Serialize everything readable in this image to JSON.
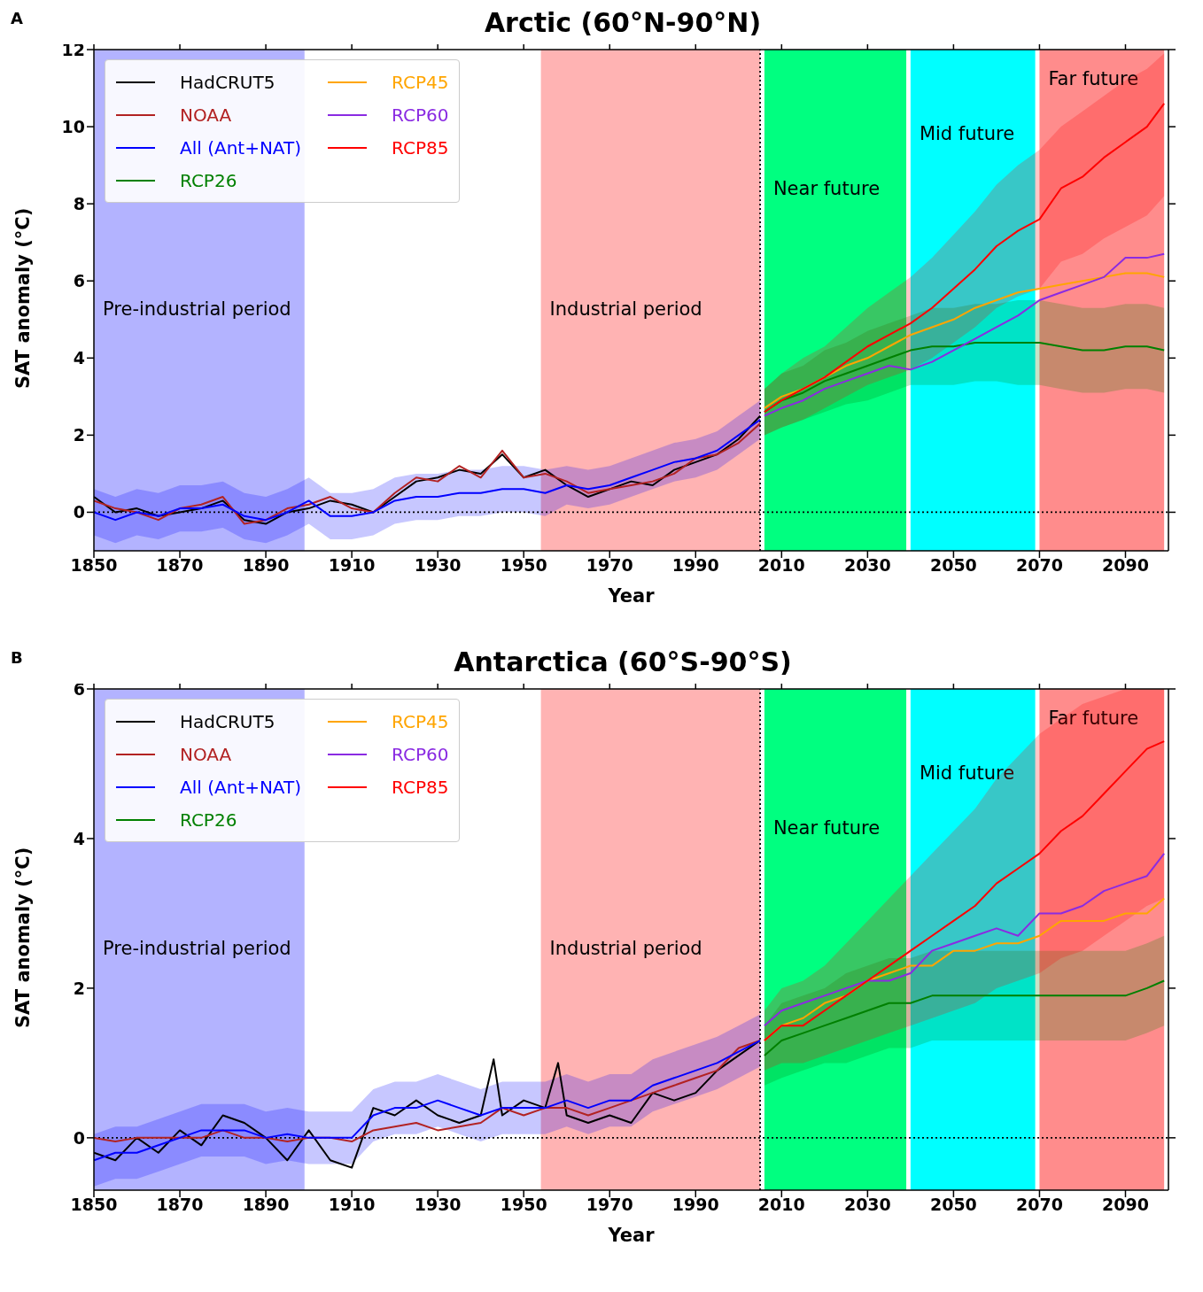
{
  "chart_data": [
    {
      "type": "line",
      "title": "Arctic (60°N-90°N)",
      "xlabel": "Year",
      "ylabel": "SAT anomaly (°C)",
      "annotations": [
        "A"
      ],
      "xlim": [
        1850,
        2100
      ],
      "xticks": [
        1850,
        1870,
        1890,
        1910,
        1930,
        1950,
        1970,
        1990,
        2010,
        2030,
        2050,
        2070,
        2090
      ],
      "ylim": [
        -1,
        12
      ],
      "yticks": [
        0,
        2,
        4,
        6,
        8,
        10,
        12
      ],
      "grid": false,
      "legend": "top left",
      "marker": "none",
      "line_style": "solid",
      "bands": [
        {
          "axis": "x",
          "from": 1850,
          "to": 1899,
          "label": "Pre-industrial period",
          "color": "#b3b3ff"
        },
        {
          "axis": "x",
          "from": 1954,
          "to": 2005,
          "label": "Industrial period",
          "color": "#ffb3b3"
        },
        {
          "axis": "x",
          "from": 2006,
          "to": 2039,
          "label": "Near future",
          "color": "#00ff80"
        },
        {
          "axis": "x",
          "from": 2040,
          "to": 2069,
          "label": "Mid future",
          "color": "#00ffff"
        },
        {
          "axis": "x",
          "from": 2070,
          "to": 2099,
          "label": "Far future",
          "color": "#ff8c8c"
        }
      ],
      "ref_lines": [
        {
          "axis": "y",
          "value": 0,
          "line_style": "dotted",
          "color": "#000000"
        },
        {
          "axis": "x",
          "value": 2005,
          "line_style": "dotted",
          "color": "#000000"
        }
      ],
      "series": [
        {
          "name": "HadCRUT5",
          "color": "#000000",
          "x": [
            1850,
            1855,
            1860,
            1865,
            1870,
            1875,
            1880,
            1885,
            1890,
            1895,
            1900,
            1905,
            1910,
            1915,
            1920,
            1925,
            1930,
            1935,
            1940,
            1945,
            1950,
            1955,
            1960,
            1965,
            1970,
            1975,
            1980,
            1985,
            1990,
            1995,
            2000,
            2005
          ],
          "values": [
            0.4,
            0.0,
            0.1,
            -0.1,
            0.0,
            0.1,
            0.3,
            -0.2,
            -0.3,
            0.0,
            0.1,
            0.3,
            0.2,
            0.0,
            0.4,
            0.8,
            0.9,
            1.1,
            1.0,
            1.5,
            0.9,
            1.1,
            0.7,
            0.4,
            0.6,
            0.8,
            0.7,
            1.1,
            1.3,
            1.5,
            1.9,
            2.5
          ]
        },
        {
          "name": "NOAA",
          "color": "#b22222",
          "x": [
            1850,
            1855,
            1860,
            1865,
            1870,
            1875,
            1880,
            1885,
            1890,
            1895,
            1900,
            1905,
            1910,
            1915,
            1920,
            1925,
            1930,
            1935,
            1940,
            1945,
            1950,
            1955,
            1960,
            1965,
            1970,
            1975,
            1980,
            1985,
            1990,
            1995,
            2000,
            2005
          ],
          "values": [
            0.3,
            0.1,
            0.0,
            -0.2,
            0.1,
            0.2,
            0.4,
            -0.3,
            -0.2,
            0.1,
            0.2,
            0.4,
            0.1,
            0.0,
            0.5,
            0.9,
            0.8,
            1.2,
            0.9,
            1.6,
            0.9,
            1.0,
            0.8,
            0.5,
            0.6,
            0.7,
            0.8,
            1.0,
            1.4,
            1.5,
            1.8,
            2.3
          ]
        },
        {
          "name": "All (Ant+NAT)",
          "color": "#0000ff",
          "x": [
            1850,
            1855,
            1860,
            1865,
            1870,
            1875,
            1880,
            1885,
            1890,
            1895,
            1900,
            1905,
            1910,
            1915,
            1920,
            1925,
            1930,
            1935,
            1940,
            1945,
            1950,
            1955,
            1960,
            1965,
            1970,
            1975,
            1980,
            1985,
            1990,
            1995,
            2000,
            2005
          ],
          "values": [
            0.0,
            -0.2,
            0.0,
            -0.1,
            0.1,
            0.1,
            0.2,
            -0.1,
            -0.2,
            0.0,
            0.3,
            -0.1,
            -0.1,
            0.0,
            0.3,
            0.4,
            0.4,
            0.5,
            0.5,
            0.6,
            0.6,
            0.5,
            0.7,
            0.6,
            0.7,
            0.9,
            1.1,
            1.3,
            1.4,
            1.6,
            2.0,
            2.4
          ],
          "lower": [
            -0.6,
            -0.8,
            -0.6,
            -0.7,
            -0.5,
            -0.5,
            -0.4,
            -0.7,
            -0.8,
            -0.6,
            -0.3,
            -0.7,
            -0.7,
            -0.6,
            -0.3,
            -0.2,
            -0.2,
            -0.1,
            -0.1,
            0.0,
            0.0,
            -0.1,
            0.2,
            0.1,
            0.2,
            0.4,
            0.6,
            0.8,
            0.9,
            1.1,
            1.5,
            1.9
          ],
          "upper": [
            0.6,
            0.4,
            0.6,
            0.5,
            0.7,
            0.7,
            0.8,
            0.5,
            0.4,
            0.6,
            0.9,
            0.5,
            0.5,
            0.6,
            0.9,
            1.0,
            1.0,
            1.1,
            1.1,
            1.2,
            1.2,
            1.1,
            1.2,
            1.1,
            1.2,
            1.4,
            1.6,
            1.8,
            1.9,
            2.1,
            2.5,
            2.9
          ]
        },
        {
          "name": "RCP26",
          "color": "#008000",
          "x": [
            2006,
            2010,
            2015,
            2020,
            2025,
            2030,
            2035,
            2040,
            2045,
            2050,
            2055,
            2060,
            2065,
            2070,
            2075,
            2080,
            2085,
            2090,
            2095,
            2099
          ],
          "values": [
            2.6,
            2.9,
            3.1,
            3.4,
            3.6,
            3.8,
            4.0,
            4.2,
            4.3,
            4.3,
            4.4,
            4.4,
            4.4,
            4.4,
            4.3,
            4.2,
            4.2,
            4.3,
            4.3,
            4.2
          ],
          "lower": [
            2.0,
            2.2,
            2.4,
            2.6,
            2.8,
            2.9,
            3.1,
            3.3,
            3.3,
            3.3,
            3.4,
            3.4,
            3.3,
            3.3,
            3.2,
            3.1,
            3.1,
            3.2,
            3.2,
            3.1
          ],
          "upper": [
            3.2,
            3.6,
            3.8,
            4.2,
            4.4,
            4.7,
            4.9,
            5.1,
            5.3,
            5.3,
            5.4,
            5.4,
            5.5,
            5.5,
            5.4,
            5.3,
            5.3,
            5.4,
            5.4,
            5.3
          ]
        },
        {
          "name": "RCP45",
          "color": "#ffa500",
          "x": [
            2006,
            2010,
            2015,
            2020,
            2025,
            2030,
            2035,
            2040,
            2045,
            2050,
            2055,
            2060,
            2065,
            2070,
            2075,
            2080,
            2085,
            2090,
            2095,
            2099
          ],
          "values": [
            2.7,
            3.0,
            3.2,
            3.5,
            3.8,
            4.0,
            4.3,
            4.6,
            4.8,
            5.0,
            5.3,
            5.5,
            5.7,
            5.8,
            5.9,
            6.0,
            6.1,
            6.2,
            6.2,
            6.1
          ]
        },
        {
          "name": "RCP60",
          "color": "#8a2be2",
          "x": [
            2006,
            2010,
            2015,
            2020,
            2025,
            2030,
            2035,
            2040,
            2045,
            2050,
            2055,
            2060,
            2065,
            2070,
            2075,
            2080,
            2085,
            2090,
            2095,
            2099
          ],
          "values": [
            2.5,
            2.7,
            2.9,
            3.2,
            3.4,
            3.6,
            3.8,
            3.7,
            3.9,
            4.2,
            4.5,
            4.8,
            5.1,
            5.5,
            5.7,
            5.9,
            6.1,
            6.6,
            6.6,
            6.7
          ]
        },
        {
          "name": "RCP85",
          "color": "#ff0000",
          "x": [
            2006,
            2010,
            2015,
            2020,
            2025,
            2030,
            2035,
            2040,
            2045,
            2050,
            2055,
            2060,
            2065,
            2070,
            2075,
            2080,
            2085,
            2090,
            2095,
            2099
          ],
          "values": [
            2.6,
            2.9,
            3.2,
            3.5,
            3.9,
            4.3,
            4.6,
            4.9,
            5.3,
            5.8,
            6.3,
            6.9,
            7.3,
            7.6,
            8.4,
            8.7,
            9.2,
            9.6,
            10.0,
            10.6
          ],
          "lower": [
            2.0,
            2.2,
            2.4,
            2.7,
            3.0,
            3.3,
            3.5,
            3.7,
            4.0,
            4.4,
            4.8,
            5.3,
            5.6,
            5.8,
            6.5,
            6.7,
            7.1,
            7.4,
            7.7,
            8.2
          ],
          "upper": [
            3.2,
            3.6,
            4.0,
            4.3,
            4.8,
            5.3,
            5.7,
            6.1,
            6.6,
            7.2,
            7.8,
            8.5,
            9.0,
            9.4,
            10.0,
            10.4,
            10.8,
            11.2,
            11.5,
            11.9
          ]
        }
      ]
    },
    {
      "type": "line",
      "title": "Antarctica (60°S-90°S)",
      "xlabel": "Year",
      "ylabel": "SAT anomaly (°C)",
      "annotations": [
        "B"
      ],
      "xlim": [
        1850,
        2100
      ],
      "xticks": [
        1850,
        1870,
        1890,
        1910,
        1930,
        1950,
        1970,
        1990,
        2010,
        2030,
        2050,
        2070,
        2090
      ],
      "ylim": [
        -0.7,
        6
      ],
      "yticks": [
        0,
        2,
        4,
        6
      ],
      "grid": false,
      "legend": "top left",
      "marker": "none",
      "line_style": "solid",
      "bands": [
        {
          "axis": "x",
          "from": 1850,
          "to": 1899,
          "label": "Pre-industrial period",
          "color": "#b3b3ff"
        },
        {
          "axis": "x",
          "from": 1954,
          "to": 2005,
          "label": "Industrial period",
          "color": "#ffb3b3"
        },
        {
          "axis": "x",
          "from": 2006,
          "to": 2039,
          "label": "Near future",
          "color": "#00ff80"
        },
        {
          "axis": "x",
          "from": 2040,
          "to": 2069,
          "label": "Mid future",
          "color": "#00ffff"
        },
        {
          "axis": "x",
          "from": 2070,
          "to": 2099,
          "label": "Far future",
          "color": "#ff8c8c"
        }
      ],
      "ref_lines": [
        {
          "axis": "y",
          "value": 0,
          "line_style": "dotted",
          "color": "#000000"
        },
        {
          "axis": "x",
          "value": 2005,
          "line_style": "dotted",
          "color": "#000000"
        }
      ],
      "series": [
        {
          "name": "HadCRUT5",
          "color": "#000000",
          "x": [
            1850,
            1855,
            1860,
            1865,
            1870,
            1875,
            1880,
            1885,
            1890,
            1895,
            1900,
            1905,
            1910,
            1915,
            1920,
            1925,
            1930,
            1935,
            1940,
            1943,
            1945,
            1950,
            1955,
            1958,
            1960,
            1965,
            1970,
            1975,
            1980,
            1985,
            1990,
            1995,
            2000,
            2005
          ],
          "values": [
            -0.2,
            -0.3,
            0.0,
            -0.2,
            0.1,
            -0.1,
            0.3,
            0.2,
            0.0,
            -0.3,
            0.1,
            -0.3,
            -0.4,
            0.4,
            0.3,
            0.5,
            0.3,
            0.2,
            0.3,
            1.05,
            0.3,
            0.5,
            0.4,
            1.0,
            0.3,
            0.2,
            0.3,
            0.2,
            0.6,
            0.5,
            0.6,
            0.9,
            1.1,
            1.3
          ]
        },
        {
          "name": "NOAA",
          "color": "#b22222",
          "x": [
            1850,
            1855,
            1860,
            1865,
            1870,
            1875,
            1880,
            1885,
            1890,
            1895,
            1900,
            1905,
            1910,
            1915,
            1920,
            1925,
            1930,
            1935,
            1940,
            1945,
            1950,
            1955,
            1960,
            1965,
            1970,
            1975,
            1980,
            1985,
            1990,
            1995,
            2000,
            2005
          ],
          "values": [
            0.0,
            -0.05,
            0.0,
            0.0,
            0.0,
            0.0,
            0.1,
            0.0,
            0.0,
            -0.05,
            0.0,
            0.0,
            -0.05,
            0.1,
            0.15,
            0.2,
            0.1,
            0.15,
            0.2,
            0.4,
            0.3,
            0.4,
            0.4,
            0.3,
            0.4,
            0.5,
            0.6,
            0.7,
            0.8,
            0.9,
            1.2,
            1.3
          ]
        },
        {
          "name": "All (Ant+NAT)",
          "color": "#0000ff",
          "x": [
            1850,
            1855,
            1860,
            1865,
            1870,
            1875,
            1880,
            1885,
            1890,
            1895,
            1900,
            1905,
            1910,
            1915,
            1920,
            1925,
            1930,
            1935,
            1940,
            1945,
            1950,
            1955,
            1960,
            1965,
            1970,
            1975,
            1980,
            1985,
            1990,
            1995,
            2000,
            2005
          ],
          "values": [
            -0.3,
            -0.2,
            -0.2,
            -0.1,
            0.0,
            0.1,
            0.1,
            0.1,
            0.0,
            0.05,
            0.0,
            0.0,
            0.0,
            0.3,
            0.4,
            0.4,
            0.5,
            0.4,
            0.3,
            0.4,
            0.4,
            0.4,
            0.5,
            0.4,
            0.5,
            0.5,
            0.7,
            0.8,
            0.9,
            1.0,
            1.15,
            1.3
          ],
          "lower": [
            -0.65,
            -0.55,
            -0.55,
            -0.45,
            -0.35,
            -0.25,
            -0.25,
            -0.25,
            -0.35,
            -0.3,
            -0.35,
            -0.35,
            -0.35,
            -0.05,
            0.05,
            0.05,
            0.15,
            0.05,
            -0.05,
            0.05,
            0.05,
            0.05,
            0.15,
            0.05,
            0.15,
            0.15,
            0.35,
            0.45,
            0.55,
            0.65,
            0.8,
            0.95
          ],
          "upper": [
            0.05,
            0.15,
            0.15,
            0.25,
            0.35,
            0.45,
            0.45,
            0.45,
            0.35,
            0.4,
            0.35,
            0.35,
            0.35,
            0.65,
            0.75,
            0.75,
            0.85,
            0.75,
            0.65,
            0.75,
            0.75,
            0.75,
            0.85,
            0.75,
            0.85,
            0.85,
            1.05,
            1.15,
            1.25,
            1.35,
            1.5,
            1.65
          ]
        },
        {
          "name": "RCP26",
          "color": "#008000",
          "x": [
            2006,
            2010,
            2015,
            2020,
            2025,
            2030,
            2035,
            2040,
            2045,
            2050,
            2055,
            2060,
            2065,
            2070,
            2075,
            2080,
            2085,
            2090,
            2095,
            2099
          ],
          "values": [
            1.1,
            1.3,
            1.4,
            1.5,
            1.6,
            1.7,
            1.8,
            1.8,
            1.9,
            1.9,
            1.9,
            1.9,
            1.9,
            1.9,
            1.9,
            1.9,
            1.9,
            1.9,
            2.0,
            2.1
          ],
          "lower": [
            0.7,
            0.8,
            0.9,
            1.0,
            1.0,
            1.1,
            1.2,
            1.2,
            1.3,
            1.3,
            1.3,
            1.3,
            1.3,
            1.3,
            1.3,
            1.3,
            1.3,
            1.3,
            1.4,
            1.5
          ],
          "upper": [
            1.5,
            1.8,
            1.9,
            2.0,
            2.2,
            2.3,
            2.4,
            2.4,
            2.5,
            2.5,
            2.5,
            2.5,
            2.5,
            2.5,
            2.5,
            2.5,
            2.5,
            2.5,
            2.6,
            2.7
          ]
        },
        {
          "name": "RCP45",
          "color": "#ffa500",
          "x": [
            2006,
            2010,
            2015,
            2020,
            2025,
            2030,
            2035,
            2040,
            2045,
            2050,
            2055,
            2060,
            2065,
            2070,
            2075,
            2080,
            2085,
            2090,
            2095,
            2099
          ],
          "values": [
            1.3,
            1.5,
            1.6,
            1.8,
            1.9,
            2.1,
            2.2,
            2.3,
            2.3,
            2.5,
            2.5,
            2.6,
            2.6,
            2.7,
            2.9,
            2.9,
            2.9,
            3.0,
            3.0,
            3.2
          ]
        },
        {
          "name": "RCP60",
          "color": "#8a2be2",
          "x": [
            2006,
            2010,
            2015,
            2020,
            2025,
            2030,
            2035,
            2040,
            2045,
            2050,
            2055,
            2060,
            2065,
            2070,
            2075,
            2080,
            2085,
            2090,
            2095,
            2099
          ],
          "values": [
            1.5,
            1.7,
            1.8,
            1.9,
            2.0,
            2.1,
            2.1,
            2.2,
            2.5,
            2.6,
            2.7,
            2.8,
            2.7,
            3.0,
            3.0,
            3.1,
            3.3,
            3.4,
            3.5,
            3.8
          ]
        },
        {
          "name": "RCP85",
          "color": "#ff0000",
          "x": [
            2006,
            2010,
            2015,
            2020,
            2025,
            2030,
            2035,
            2040,
            2045,
            2050,
            2055,
            2060,
            2065,
            2070,
            2075,
            2080,
            2085,
            2090,
            2095,
            2099
          ],
          "values": [
            1.3,
            1.5,
            1.5,
            1.7,
            1.9,
            2.1,
            2.3,
            2.5,
            2.7,
            2.9,
            3.1,
            3.4,
            3.6,
            3.8,
            4.1,
            4.3,
            4.6,
            4.9,
            5.2,
            5.3
          ],
          "lower": [
            0.9,
            1.0,
            1.0,
            1.1,
            1.2,
            1.3,
            1.4,
            1.5,
            1.6,
            1.7,
            1.8,
            2.0,
            2.1,
            2.2,
            2.4,
            2.5,
            2.7,
            2.9,
            3.1,
            3.2
          ],
          "upper": [
            1.7,
            2.0,
            2.1,
            2.3,
            2.6,
            2.9,
            3.2,
            3.5,
            3.8,
            4.1,
            4.4,
            4.8,
            5.1,
            5.4,
            5.6,
            5.8,
            5.9,
            6.0,
            6.0,
            6.0
          ]
        }
      ]
    }
  ]
}
